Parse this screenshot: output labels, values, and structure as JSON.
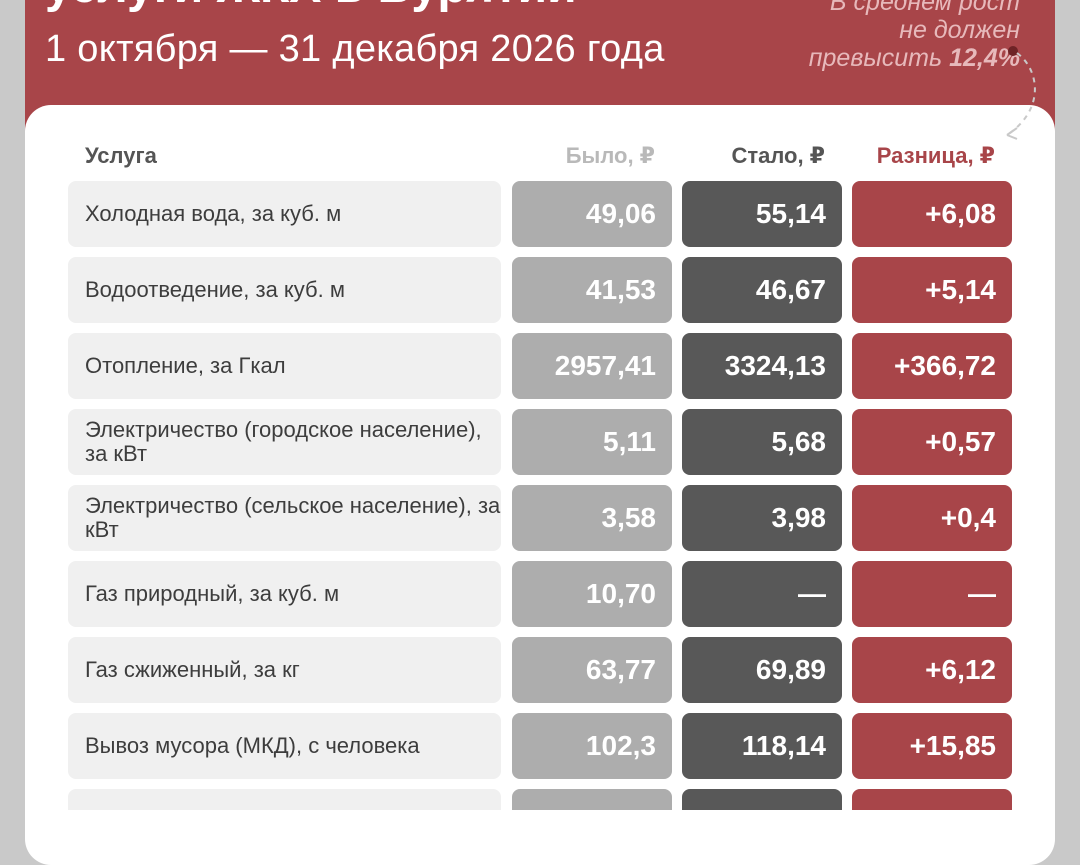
{
  "header": {
    "title_partial": "услуги ЖКХ в Бурятии",
    "subtitle": "1 октября — 31 декабря 2026 года",
    "note": {
      "line1": "В среднем рост",
      "line2": "не должен",
      "line3_prefix": "превысить",
      "line3_value": "12,4%"
    }
  },
  "table": {
    "columns": {
      "service": "Услуга",
      "was": "Было, ₽",
      "now": "Стало, ₽",
      "diff": "Разница, ₽"
    },
    "rows": [
      {
        "name": "Холодная вода, за куб. м",
        "was": "49,06",
        "now": "55,14",
        "diff": "+6,08"
      },
      {
        "name": "Водоотведение, за куб. м",
        "was": "41,53",
        "now": "46,67",
        "diff": "+5,14"
      },
      {
        "name": "Отопление, за Гкал",
        "was": "2957,41",
        "now": "3324,13",
        "diff": "+366,72"
      },
      {
        "name": "Электричество (городское население), за кВт",
        "was": "5,11",
        "now": "5,68",
        "diff": "+0,57"
      },
      {
        "name": "Электричество (сельское население), за кВт",
        "was": "3,58",
        "now": "3,98",
        "diff": "+0,4"
      },
      {
        "name": "Газ природный, за куб. м",
        "was": "10,70",
        "now": "—",
        "diff": "—"
      },
      {
        "name": "Газ сжиженный, за кг",
        "was": "63,77",
        "now": "69,89",
        "diff": "+6,12"
      },
      {
        "name": "Вывоз мусора (МКД), с человека",
        "was": "102,3",
        "now": "118,14",
        "diff": "+15,85"
      },
      {
        "name": "",
        "was": "",
        "now": "",
        "diff": ""
      }
    ]
  },
  "colors": {
    "accent": "#a84549",
    "was_bg": "#adadad",
    "now_bg": "#585858",
    "name_bg": "#f0f0f0"
  }
}
